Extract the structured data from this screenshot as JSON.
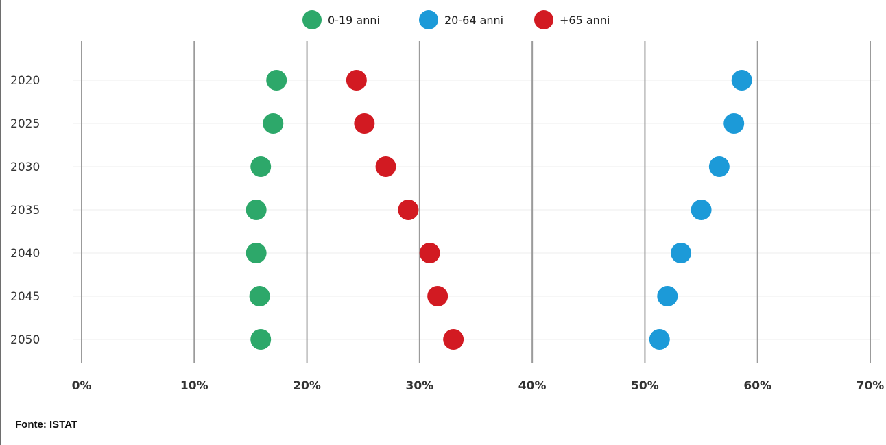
{
  "source_note": "Fonte: ISTAT",
  "chart_data": {
    "type": "scatter",
    "orientation": "horizontal-dot-plot",
    "categories": [
      "2020",
      "2025",
      "2030",
      "2035",
      "2040",
      "2045",
      "2050"
    ],
    "x_ticks": [
      "0%",
      "10%",
      "20%",
      "30%",
      "40%",
      "50%",
      "60%",
      "70%"
    ],
    "xlim": [
      0,
      70
    ],
    "x_unit": "%",
    "grid": true,
    "legend_position": "top-center",
    "series": [
      {
        "name": "0-19 anni",
        "color": "#2da86a",
        "values": [
          17.3,
          17.0,
          15.9,
          15.5,
          15.5,
          15.8,
          15.9
        ]
      },
      {
        "name": "20-64 anni",
        "color": "#1c9ad8",
        "values": [
          58.6,
          57.9,
          56.6,
          55.0,
          53.2,
          52.0,
          51.3
        ]
      },
      {
        "name": "+65 anni",
        "color": "#d21a22",
        "values": [
          24.4,
          25.1,
          27.0,
          29.0,
          30.9,
          31.6,
          33.0
        ]
      }
    ]
  }
}
